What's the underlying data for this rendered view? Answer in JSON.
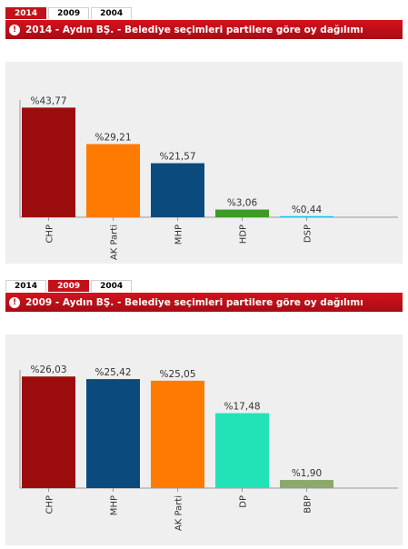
{
  "tabs": [
    "2014",
    "2009",
    "2004"
  ],
  "chart_data": [
    {
      "type": "bar",
      "active_tab": "2014",
      "title": "2014 - Aydın BŞ. - Belediye seçimleri partilere göre oy dağılımı",
      "categories": [
        "CHP",
        "AK Parti",
        "MHP",
        "HDP",
        "DSP"
      ],
      "values": [
        43.77,
        29.21,
        21.57,
        3.06,
        0.44
      ],
      "value_labels": [
        "%43,77",
        "%29,21",
        "%21,57",
        "%3,06",
        "%0,44"
      ],
      "colors": [
        "#9b0d0d",
        "#ff7a00",
        "#0b4a7d",
        "#3d9a24",
        "#19c3ea"
      ],
      "ylim": [
        0,
        45
      ],
      "grid": false
    },
    {
      "type": "bar",
      "active_tab": "2009",
      "title": "2009 - Aydın BŞ. - Belediye seçimleri partilere göre oy dağılımı",
      "categories": [
        "CHP",
        "MHP",
        "AK Parti",
        "DP",
        "BBP"
      ],
      "values": [
        26.03,
        25.42,
        25.05,
        17.48,
        1.9
      ],
      "value_labels": [
        "%26,03",
        "%25,42",
        "%25,05",
        "%17,48",
        "%1,90"
      ],
      "colors": [
        "#9b0d0d",
        "#0b4a7d",
        "#ff7a00",
        "#22e3b7",
        "#8aa96b"
      ],
      "ylim": [
        0,
        26.5
      ],
      "grid": false
    }
  ]
}
